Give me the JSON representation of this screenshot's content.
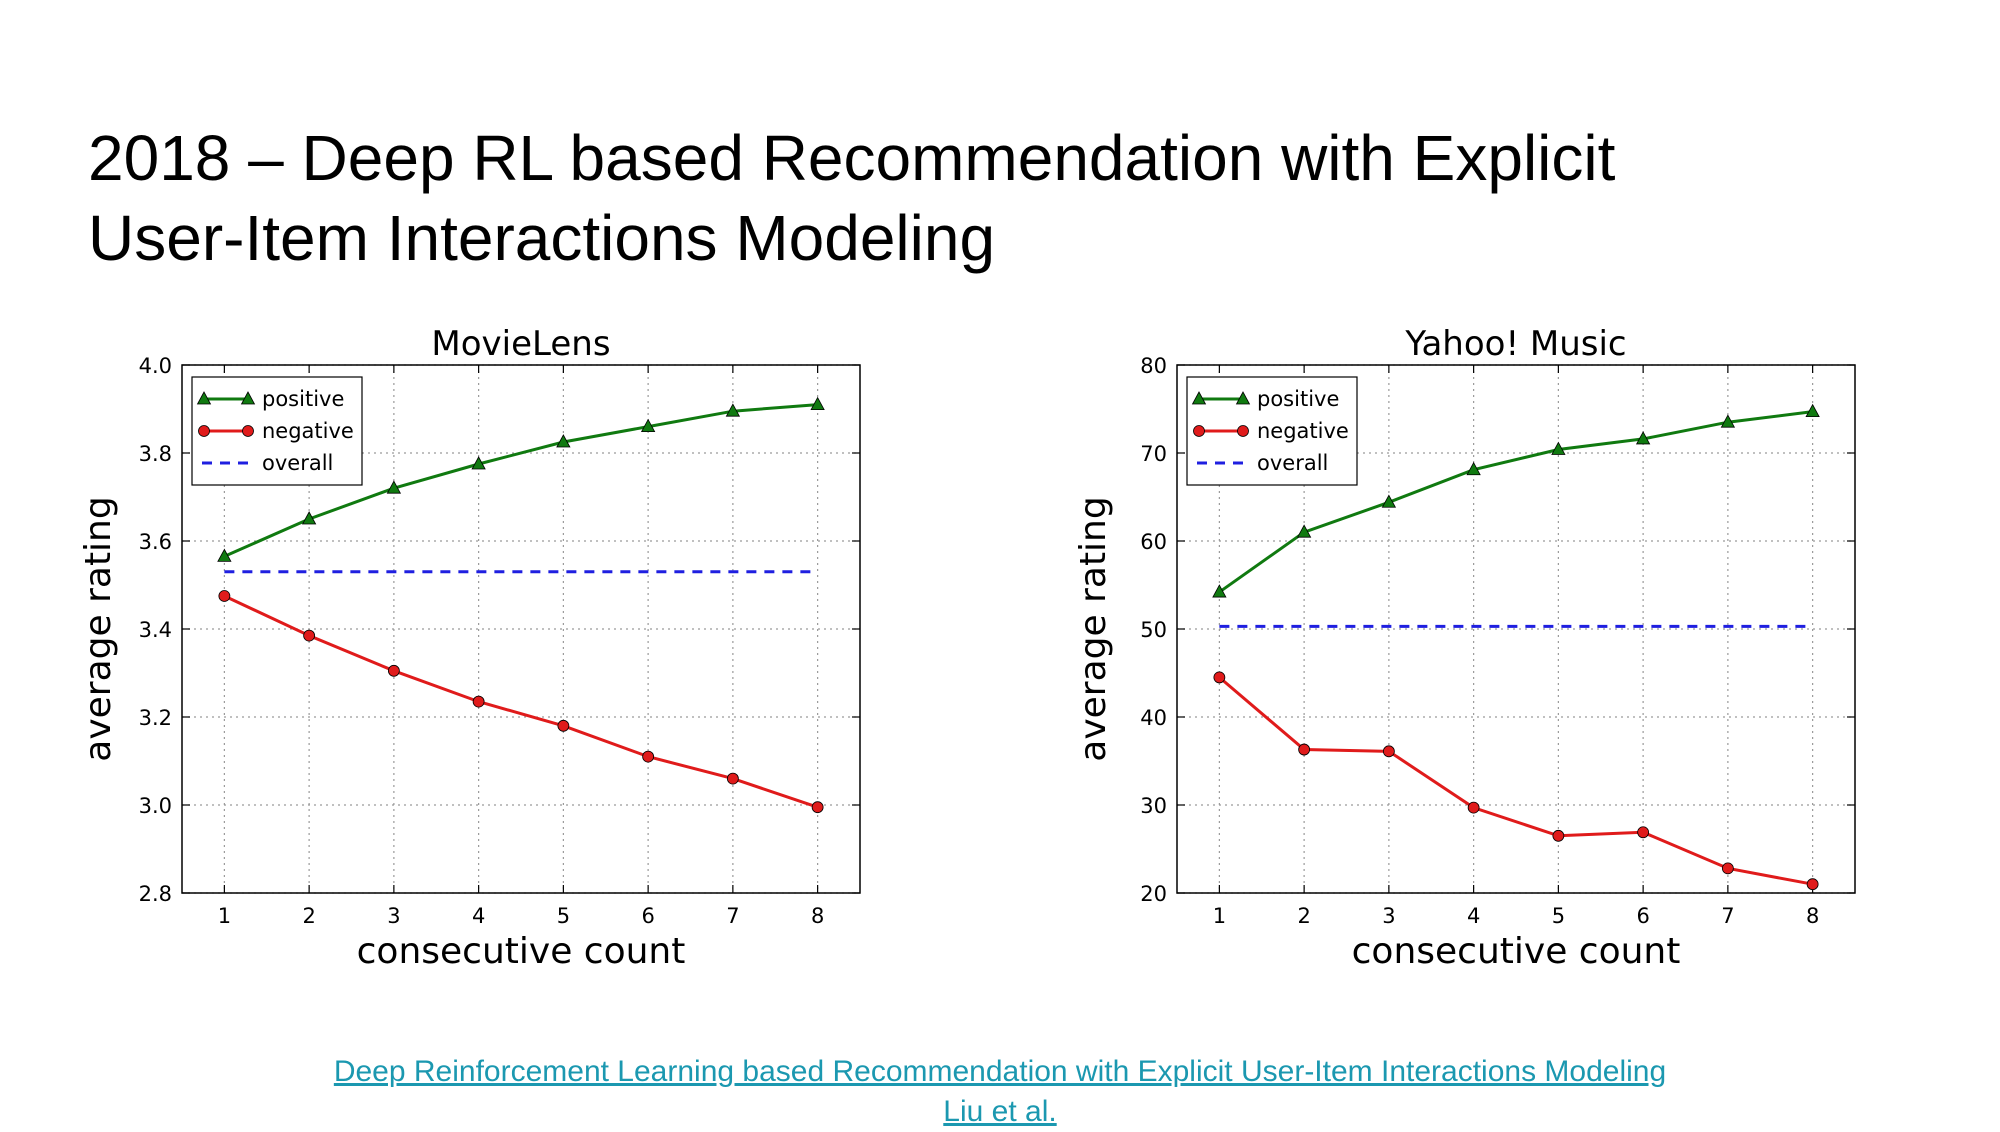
{
  "slide": {
    "title_line1": "2018 – Deep RL based Recommendation with Explicit",
    "title_line2": "User-Item Interactions Modeling",
    "link_text": "Deep Reinforcement Learning based Recommendation with Explicit User-Item Interactions Modeling",
    "authors_text": "Liu et al.",
    "link_color": "#1b98b0"
  },
  "chart_data": [
    {
      "type": "line",
      "title": "MovieLens",
      "xlabel": "consecutive count",
      "ylabel": "average rating",
      "xlim": [
        0.5,
        8.5
      ],
      "ylim": [
        2.8,
        4.0
      ],
      "xticks": [
        "1",
        "2",
        "3",
        "4",
        "5",
        "6",
        "7",
        "8"
      ],
      "yticks": [
        "2.8",
        "3.0",
        "3.2",
        "3.4",
        "3.6",
        "3.8",
        "4.0"
      ],
      "x": [
        1,
        2,
        3,
        4,
        5,
        6,
        7,
        8
      ],
      "grid": true,
      "legend_position": "top-left",
      "series": [
        {
          "name": "positive",
          "color": "#107a10",
          "marker": "triangle",
          "style": "solid",
          "values": [
            3.565,
            3.65,
            3.72,
            3.775,
            3.825,
            3.86,
            3.895,
            3.91
          ]
        },
        {
          "name": "negative",
          "color": "#e01b1b",
          "marker": "circle",
          "style": "solid",
          "values": [
            3.475,
            3.385,
            3.305,
            3.235,
            3.18,
            3.11,
            3.06,
            2.995
          ]
        },
        {
          "name": "overall",
          "color": "#1f1fe0",
          "marker": "none",
          "style": "dashed",
          "values": [
            3.53,
            3.53,
            3.53,
            3.53,
            3.53,
            3.53,
            3.53,
            3.53
          ]
        }
      ]
    },
    {
      "type": "line",
      "title": "Yahoo! Music",
      "xlabel": "consecutive count",
      "ylabel": "average rating",
      "xlim": [
        0.5,
        8.5
      ],
      "ylim": [
        20,
        80
      ],
      "xticks": [
        "1",
        "2",
        "3",
        "4",
        "5",
        "6",
        "7",
        "8"
      ],
      "yticks": [
        "20",
        "30",
        "40",
        "50",
        "60",
        "70",
        "80"
      ],
      "x": [
        1,
        2,
        3,
        4,
        5,
        6,
        7,
        8
      ],
      "grid": true,
      "legend_position": "top-left",
      "series": [
        {
          "name": "positive",
          "color": "#107a10",
          "marker": "triangle",
          "style": "solid",
          "values": [
            54.2,
            61.0,
            64.4,
            68.1,
            70.4,
            71.6,
            73.5,
            74.7
          ]
        },
        {
          "name": "negative",
          "color": "#e01b1b",
          "marker": "circle",
          "style": "solid",
          "values": [
            44.5,
            36.3,
            36.1,
            29.7,
            26.5,
            26.9,
            22.8,
            21.0
          ]
        },
        {
          "name": "overall",
          "color": "#1f1fe0",
          "marker": "none",
          "style": "dashed",
          "values": [
            50.3,
            50.3,
            50.3,
            50.3,
            50.3,
            50.3,
            50.3,
            50.3
          ]
        }
      ]
    }
  ]
}
